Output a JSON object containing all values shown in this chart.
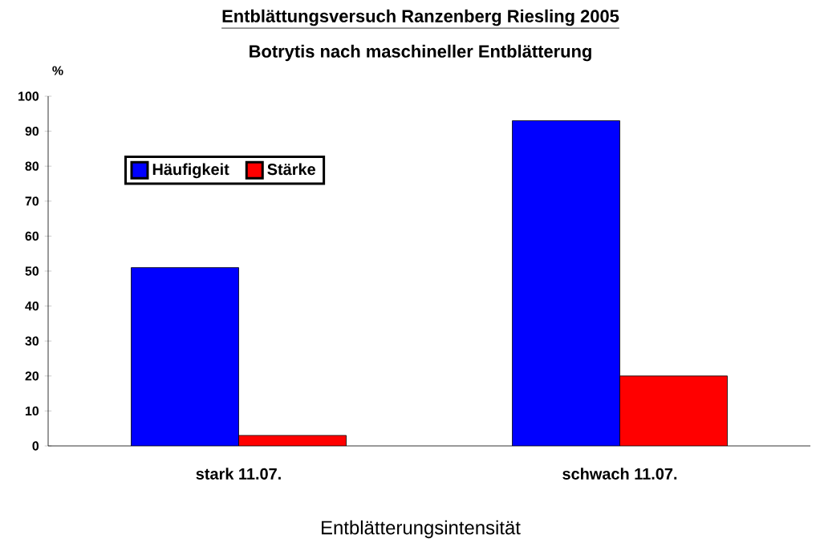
{
  "chart_data": {
    "type": "bar",
    "title": "Entblättungsversuch Ranzenberg Riesling 2005",
    "subtitle": "Botrytis nach maschineller Entblätterung",
    "xlabel": "Entblätterungsintensität",
    "ylabel": "%",
    "categories": [
      "stark 11.07.",
      "schwach 11.07."
    ],
    "series": [
      {
        "name": "Häufigkeit",
        "color": "#0000ff",
        "values": [
          51,
          93
        ]
      },
      {
        "name": "Stärke",
        "color": "#ff0000",
        "values": [
          3,
          20
        ]
      }
    ],
    "ylim": [
      0,
      100
    ],
    "yticks": [
      0,
      10,
      20,
      30,
      40,
      50,
      60,
      70,
      80,
      90,
      100
    ],
    "legend": "top left"
  }
}
